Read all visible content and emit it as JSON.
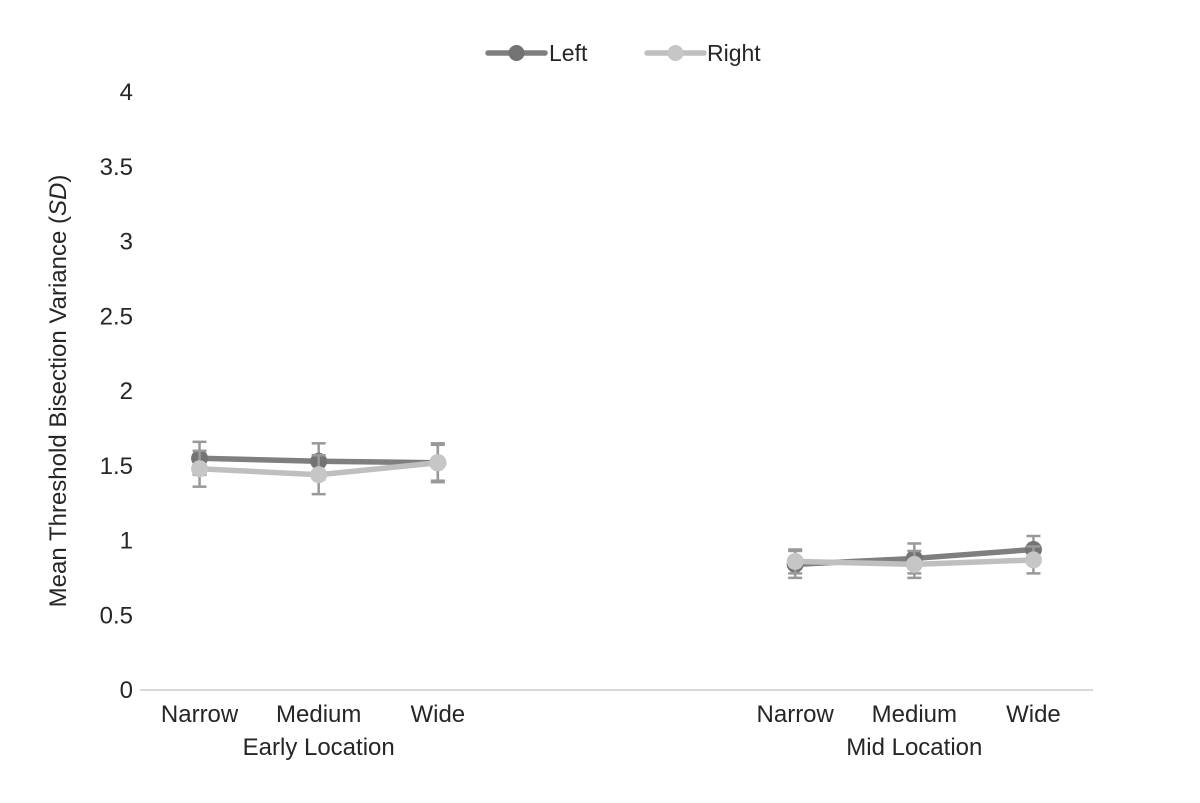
{
  "chart_data": {
    "type": "line",
    "title": "",
    "xlabel": "",
    "ylabel": {
      "prefix": "Mean Threshold Bisection Variance (",
      "italic": "SD",
      "suffix": ")"
    },
    "ylim": [
      0,
      4
    ],
    "yticks": [
      0,
      0.5,
      1,
      1.5,
      2,
      2.5,
      3,
      3.5,
      4
    ],
    "ytick_labels": [
      "0",
      "0.5",
      "1",
      "1.5",
      "2",
      "2.5",
      "3",
      "3.5",
      "4"
    ],
    "grid": false,
    "legend_position": "top-center",
    "legend": [
      "Left",
      "Right"
    ],
    "total_slots": 8,
    "slots": [
      0,
      1,
      2,
      5,
      6,
      7
    ],
    "groups": [
      {
        "label": "Early Location",
        "categories": [
          "Narrow",
          "Medium",
          "Wide"
        ],
        "slots": [
          0,
          1,
          2
        ],
        "center_slot": 1
      },
      {
        "label": "Mid Location",
        "categories": [
          "Narrow",
          "Medium",
          "Wide"
        ],
        "slots": [
          5,
          6,
          7
        ],
        "center_slot": 6
      }
    ],
    "series": [
      {
        "name": "Left",
        "line_color": "#7f7f7f",
        "marker_color": "#737373",
        "values": [
          1.55,
          1.53,
          1.52,
          0.84,
          0.88,
          0.94
        ],
        "errors": [
          0.11,
          0.12,
          0.12,
          0.09,
          0.1,
          0.09
        ]
      },
      {
        "name": "Right",
        "line_color": "#bfbfbf",
        "marker_color": "#c6c6c6",
        "values": [
          1.48,
          1.44,
          1.52,
          0.86,
          0.84,
          0.87
        ],
        "errors": [
          0.12,
          0.13,
          0.13,
          0.08,
          0.09,
          0.09
        ]
      }
    ],
    "colors": {
      "error_bar": "#999999",
      "axis_line": "#d9d9d9",
      "text": "#262626",
      "background": "#ffffff"
    }
  }
}
